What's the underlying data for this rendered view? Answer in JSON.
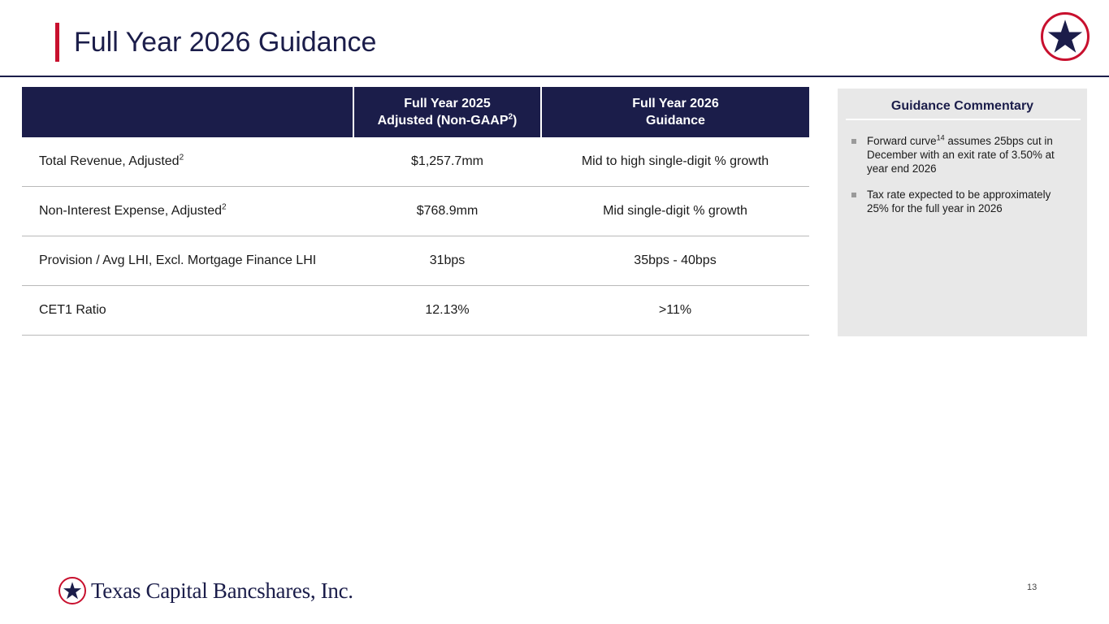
{
  "header": {
    "title": "Full Year 2026 Guidance"
  },
  "logo": {
    "icon": "star-icon",
    "brand_text": "Texas Capital Bancshares, Inc."
  },
  "colors": {
    "navy": "#1b1d4a",
    "red": "#c8102e",
    "panel": "#e8e8e8"
  },
  "table": {
    "headers": [
      {
        "line1": "",
        "line2": ""
      },
      {
        "line1": "Full Year 2025",
        "line2": "Adjusted (Non-GAAP",
        "sup": "2",
        "line2_after": ")"
      },
      {
        "line1": "Full Year 2026",
        "line2": "Guidance"
      }
    ],
    "rows": [
      {
        "metric": "Total Revenue, Adjusted",
        "sup": "2",
        "fy2025": "$1,257.7mm",
        "fy2026": "Mid to high single-digit % growth"
      },
      {
        "metric": "Non-Interest Expense, Adjusted",
        "sup": "2",
        "fy2025": "$768.9mm",
        "fy2026": "Mid single-digit % growth"
      },
      {
        "metric": "Provision / Avg LHI, Excl. Mortgage Finance LHI",
        "sup": "",
        "fy2025": "31bps",
        "fy2026": "35bps - 40bps"
      },
      {
        "metric": "CET1 Ratio",
        "sup": "",
        "fy2025": "12.13%",
        "fy2026": ">11%"
      }
    ]
  },
  "commentary": {
    "title": "Guidance Commentary",
    "items": [
      {
        "before": "Forward curve",
        "sup": "14",
        "after": " assumes 25bps cut in December with an exit rate of 3.50% at year end 2026"
      },
      {
        "before": "Tax rate expected to be approximately 25% for the full year in 2026",
        "sup": "",
        "after": ""
      }
    ]
  },
  "footer": {
    "page_number": "13"
  }
}
